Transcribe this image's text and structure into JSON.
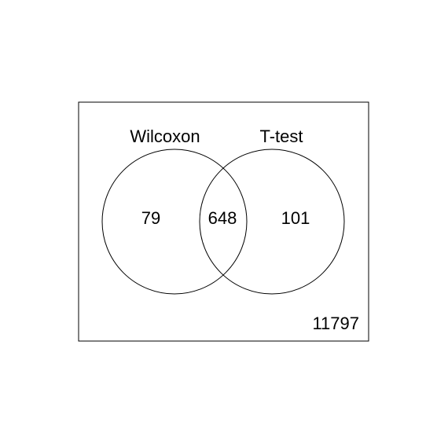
{
  "venn": {
    "sets": [
      {
        "label": "Wilcoxon",
        "only_count": "79"
      },
      {
        "label": "T-test",
        "only_count": "101"
      }
    ],
    "intersection_count": "648",
    "outside_count": "11797",
    "colors": {
      "background": "#ffffff",
      "stroke": "#000000",
      "text": "#000000"
    }
  }
}
